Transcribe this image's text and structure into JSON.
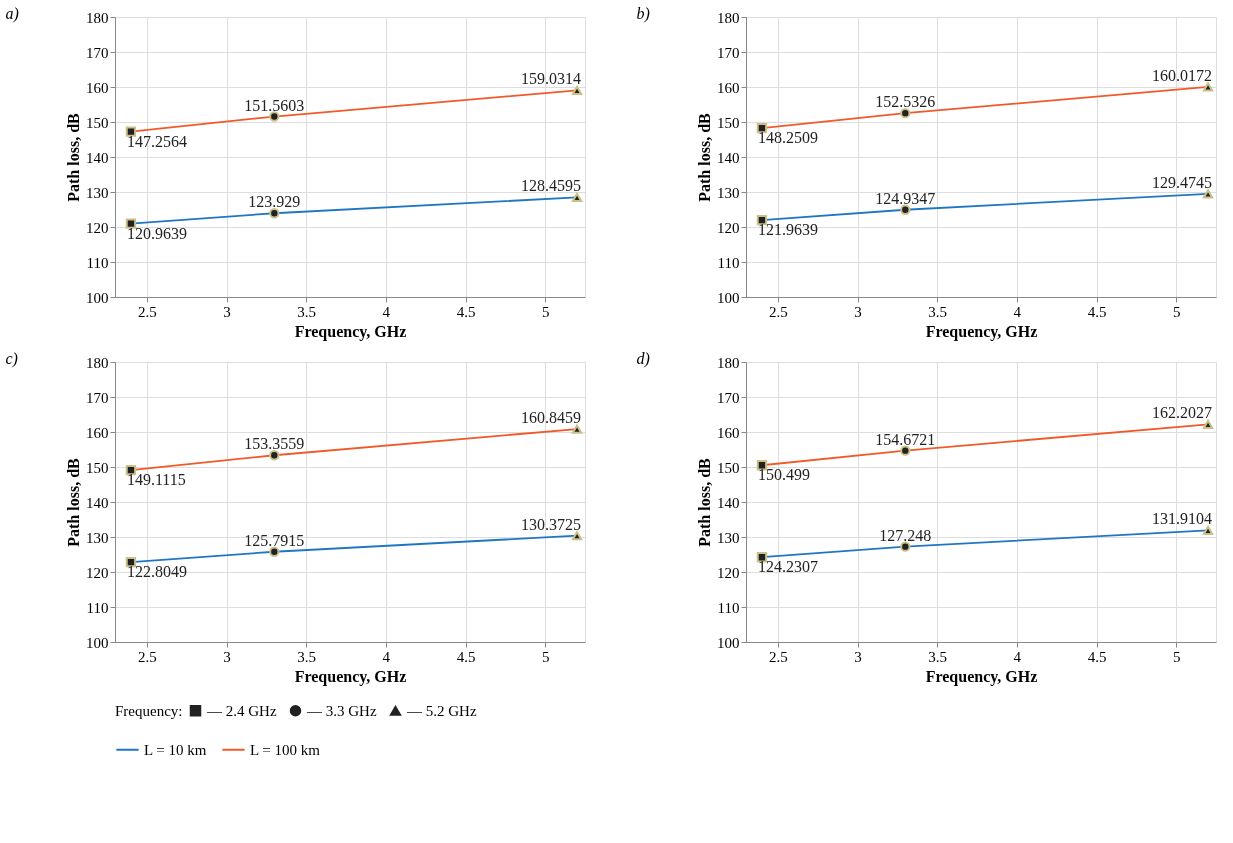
{
  "chart_data": [
    {
      "type": "line",
      "title": "a)",
      "xlabel": "Frequency, GHz",
      "ylabel": "Path loss, dB",
      "xlim": [
        2.3,
        5.25
      ],
      "xticks": [
        2.5,
        3,
        3.5,
        4,
        4.5,
        5
      ],
      "ylim": [
        100,
        180
      ],
      "yticks": [
        100,
        110,
        120,
        130,
        140,
        150,
        160,
        170,
        180
      ],
      "grid": true,
      "x": [
        2.4,
        3.3,
        5.2
      ],
      "legend": "bottom",
      "series": [
        {
          "name": "L = 10 km",
          "color": "#1f77c4",
          "values": [
            120.9639,
            123.929,
            128.4595
          ],
          "value_labels": [
            "120.9639",
            "123.929",
            "128.4595"
          ]
        },
        {
          "name": "L = 100 km",
          "color": "#f05a28",
          "values": [
            147.2564,
            151.5603,
            159.0314
          ],
          "value_labels": [
            "147.2564",
            "151.5603",
            "159.0314"
          ]
        },
        {
          "type": "scatter",
          "marker": "square",
          "color": "#222222",
          "x": [
            2.4,
            2.4
          ],
          "values": [
            120.9639,
            147.2564
          ]
        },
        {
          "type": "scatter",
          "marker": "circle",
          "color": "#222222",
          "x": [
            3.3,
            3.3
          ],
          "values": [
            123.929,
            151.5603
          ]
        },
        {
          "type": "scatter",
          "marker": "triangle",
          "color": "#222222",
          "x": [
            5.2,
            5.2
          ],
          "values": [
            128.4595,
            159.0314
          ]
        }
      ]
    },
    {
      "type": "line",
      "title": "b)",
      "xlabel": "Frequency, GHz",
      "ylabel": "Path loss, dB",
      "xlim": [
        2.3,
        5.25
      ],
      "xticks": [
        2.5,
        3,
        3.5,
        4,
        4.5,
        5
      ],
      "ylim": [
        100,
        180
      ],
      "yticks": [
        100,
        110,
        120,
        130,
        140,
        150,
        160,
        170,
        180
      ],
      "grid": true,
      "x": [
        2.4,
        3.3,
        5.2
      ],
      "legend": "bottom",
      "series": [
        {
          "name": "L = 10 km",
          "color": "#1f77c4",
          "values": [
            121.9639,
            124.9347,
            129.4745
          ],
          "value_labels": [
            "121.9639",
            "124.9347",
            "129.4745"
          ]
        },
        {
          "name": "L = 100 km",
          "color": "#f05a28",
          "values": [
            148.2509,
            152.5326,
            160.0172
          ],
          "value_labels": [
            "148.2509",
            "152.5326",
            "160.0172"
          ]
        },
        {
          "type": "scatter",
          "marker": "square",
          "color": "#222222",
          "x": [
            2.4,
            2.4
          ],
          "values": [
            121.9639,
            148.2509
          ]
        },
        {
          "type": "scatter",
          "marker": "circle",
          "color": "#222222",
          "x": [
            3.3,
            3.3
          ],
          "values": [
            124.9347,
            152.5326
          ]
        },
        {
          "type": "scatter",
          "marker": "triangle",
          "color": "#222222",
          "x": [
            5.2,
            5.2
          ],
          "values": [
            129.4745,
            160.0172
          ]
        }
      ]
    },
    {
      "type": "line",
      "title": "c)",
      "xlabel": "Frequency, GHz",
      "ylabel": "Path loss, dB",
      "xlim": [
        2.3,
        5.25
      ],
      "xticks": [
        2.5,
        3,
        3.5,
        4,
        4.5,
        5
      ],
      "ylim": [
        100,
        180
      ],
      "yticks": [
        100,
        110,
        120,
        130,
        140,
        150,
        160,
        170,
        180
      ],
      "grid": true,
      "x": [
        2.4,
        3.3,
        5.2
      ],
      "legend": "bottom",
      "series": [
        {
          "name": "L = 10 km",
          "color": "#1f77c4",
          "values": [
            122.8049,
            125.7915,
            130.3725
          ],
          "value_labels": [
            "122.8049",
            "125.7915",
            "130.3725"
          ]
        },
        {
          "name": "L = 100 km",
          "color": "#f05a28",
          "values": [
            149.1115,
            153.3559,
            160.8459
          ],
          "value_labels": [
            "149.1115",
            "153.3559",
            "160.8459"
          ]
        },
        {
          "type": "scatter",
          "marker": "square",
          "color": "#222222",
          "x": [
            2.4,
            2.4
          ],
          "values": [
            122.8049,
            149.1115
          ]
        },
        {
          "type": "scatter",
          "marker": "circle",
          "color": "#222222",
          "x": [
            3.3,
            3.3
          ],
          "values": [
            125.7915,
            153.3559
          ]
        },
        {
          "type": "scatter",
          "marker": "triangle",
          "color": "#222222",
          "x": [
            5.2,
            5.2
          ],
          "values": [
            130.3725,
            160.8459
          ]
        }
      ]
    },
    {
      "type": "line",
      "title": "d)",
      "xlabel": "Frequency, GHz",
      "ylabel": "Path loss, dB",
      "xlim": [
        2.3,
        5.25
      ],
      "xticks": [
        2.5,
        3,
        3.5,
        4,
        4.5,
        5
      ],
      "ylim": [
        100,
        180
      ],
      "yticks": [
        100,
        110,
        120,
        130,
        140,
        150,
        160,
        170,
        180
      ],
      "grid": true,
      "x": [
        2.4,
        3.3,
        5.2
      ],
      "legend": "bottom",
      "legend_title": "Frequency:",
      "series": [
        {
          "name": "L = 10 km",
          "color": "#1f77c4",
          "values": [
            124.2307,
            127.248,
            131.9104
          ],
          "value_labels": [
            "124.2307",
            "127.248",
            "131.9104"
          ]
        },
        {
          "name": "L = 100 km",
          "color": "#f05a28",
          "values": [
            150.499,
            154.6721,
            162.2027
          ],
          "value_labels": [
            "150.499",
            "154.6721",
            "162.2027"
          ]
        },
        {
          "type": "scatter",
          "name": "— 2.4 GHz",
          "marker": "square",
          "color": "#222222",
          "x": [
            2.4,
            2.4
          ],
          "values": [
            124.2307,
            150.499
          ]
        },
        {
          "type": "scatter",
          "name": "— 3.3 GHz",
          "marker": "circle",
          "color": "#222222",
          "x": [
            3.3,
            3.3
          ],
          "values": [
            127.248,
            154.6721
          ]
        },
        {
          "type": "scatter",
          "name": "— 5.2 GHz",
          "marker": "triangle",
          "color": "#222222",
          "x": [
            5.2,
            5.2
          ],
          "values": [
            131.9104,
            162.2027
          ]
        }
      ]
    }
  ]
}
